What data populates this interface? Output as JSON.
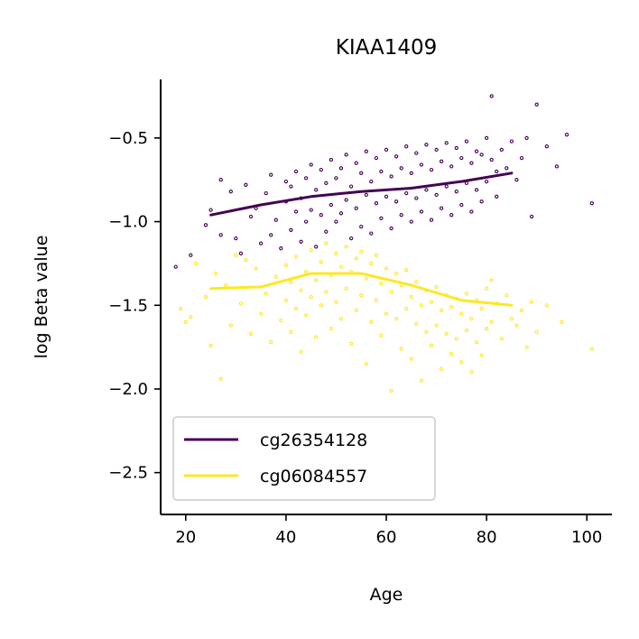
{
  "chart_data": {
    "type": "scatter",
    "title": "KIAA1409",
    "xlabel": "Age",
    "ylabel": "log Beta value",
    "xlim": [
      15,
      105
    ],
    "ylim": [
      -2.75,
      -0.15
    ],
    "xticks": [
      20,
      40,
      60,
      80,
      100
    ],
    "xtick_labels": [
      "20",
      "40",
      "60",
      "80",
      "100"
    ],
    "yticks": [
      -0.5,
      -1.0,
      -1.5,
      -2.0,
      -2.5
    ],
    "ytick_labels": [
      "−0.5",
      "−1.0",
      "−1.5",
      "−2.0",
      "−2.5"
    ],
    "grid": false,
    "legend_position": "lower-left",
    "series": [
      {
        "name": "cg26354128",
        "color": "#440154",
        "trend": {
          "x": [
            25,
            35,
            45,
            55,
            65,
            75,
            85
          ],
          "y": [
            -0.96,
            -0.9,
            -0.85,
            -0.82,
            -0.8,
            -0.76,
            -0.71
          ]
        },
        "points": {
          "x": [
            18,
            21,
            24,
            25,
            27,
            27,
            29,
            30,
            31,
            32,
            33,
            34,
            35,
            36,
            37,
            37,
            38,
            39,
            40,
            40,
            41,
            41,
            42,
            42,
            43,
            43,
            44,
            44,
            45,
            45,
            46,
            46,
            47,
            47,
            48,
            48,
            49,
            49,
            50,
            50,
            51,
            51,
            52,
            52,
            53,
            53,
            54,
            54,
            55,
            55,
            56,
            56,
            57,
            57,
            58,
            58,
            59,
            59,
            60,
            60,
            61,
            61,
            62,
            62,
            63,
            63,
            64,
            64,
            65,
            65,
            66,
            66,
            67,
            67,
            68,
            68,
            69,
            69,
            70,
            70,
            71,
            71,
            72,
            72,
            73,
            73,
            74,
            74,
            75,
            75,
            76,
            76,
            77,
            77,
            78,
            78,
            79,
            79,
            80,
            80,
            81,
            81,
            82,
            82,
            83,
            84,
            85,
            86,
            87,
            88,
            89,
            90,
            92,
            94,
            96,
            101
          ],
          "y": [
            -1.27,
            -1.2,
            -1.02,
            -0.93,
            -0.75,
            -1.08,
            -0.82,
            -1.1,
            -1.19,
            -0.78,
            -0.97,
            -0.92,
            -1.13,
            -0.83,
            -0.72,
            -1.08,
            -0.99,
            -1.16,
            -0.88,
            -0.76,
            -1.05,
            -0.79,
            -0.94,
            -0.7,
            -0.86,
            -1.12,
            -0.74,
            -1.0,
            -0.66,
            -0.93,
            -0.81,
            -1.15,
            -0.69,
            -0.96,
            -0.77,
            -1.06,
            -0.63,
            -0.9,
            -0.74,
            -1.0,
            -0.68,
            -0.95,
            -0.6,
            -0.87,
            -0.79,
            -1.1,
            -0.65,
            -0.92,
            -0.71,
            -1.03,
            -0.58,
            -0.84,
            -0.76,
            -1.07,
            -0.62,
            -0.89,
            -0.7,
            -0.98,
            -0.57,
            -0.85,
            -0.73,
            -1.04,
            -0.61,
            -0.88,
            -0.68,
            -0.96,
            -0.55,
            -0.83,
            -0.71,
            -1.0,
            -0.59,
            -0.86,
            -0.66,
            -0.94,
            -0.54,
            -0.81,
            -0.69,
            -0.99,
            -0.57,
            -0.84,
            -0.64,
            -0.92,
            -0.53,
            -0.79,
            -0.67,
            -0.96,
            -0.56,
            -0.82,
            -0.62,
            -0.9,
            -0.52,
            -0.77,
            -0.65,
            -0.94,
            -0.58,
            -0.81,
            -0.6,
            -0.88,
            -0.5,
            -0.76,
            -0.25,
            -0.63,
            -0.7,
            -0.85,
            -0.57,
            -0.68,
            -0.52,
            -0.75,
            -0.62,
            -0.5,
            -0.97,
            -0.3,
            -0.55,
            -0.67,
            -0.48,
            -0.89
          ]
        }
      },
      {
        "name": "cg06084557",
        "color": "#fde725",
        "trend": {
          "x": [
            25,
            35,
            45,
            55,
            65,
            75,
            85
          ],
          "y": [
            -1.4,
            -1.39,
            -1.31,
            -1.31,
            -1.38,
            -1.47,
            -1.5
          ]
        },
        "points": {
          "x": [
            19,
            20,
            21,
            22,
            24,
            25,
            26,
            27,
            28,
            29,
            30,
            31,
            32,
            33,
            34,
            35,
            36,
            37,
            38,
            39,
            40,
            40,
            41,
            41,
            42,
            42,
            43,
            43,
            44,
            44,
            45,
            45,
            46,
            46,
            47,
            47,
            48,
            48,
            49,
            49,
            50,
            50,
            51,
            51,
            52,
            52,
            53,
            53,
            54,
            54,
            55,
            55,
            56,
            56,
            57,
            57,
            58,
            58,
            59,
            59,
            60,
            60,
            61,
            61,
            62,
            62,
            63,
            63,
            64,
            64,
            65,
            65,
            66,
            66,
            67,
            67,
            68,
            68,
            69,
            69,
            70,
            70,
            71,
            71,
            72,
            72,
            73,
            73,
            74,
            74,
            75,
            75,
            76,
            76,
            77,
            77,
            78,
            78,
            79,
            79,
            80,
            80,
            81,
            81,
            82,
            83,
            84,
            85,
            86,
            87,
            88,
            89,
            90,
            92,
            95,
            101
          ],
          "y": [
            -1.52,
            -1.6,
            -1.57,
            -1.25,
            -1.45,
            -1.74,
            -1.31,
            -1.94,
            -1.38,
            -1.62,
            -1.2,
            -1.49,
            -1.23,
            -1.67,
            -1.28,
            -1.55,
            -1.43,
            -1.72,
            -1.33,
            -1.59,
            -1.26,
            -1.47,
            -1.36,
            -1.66,
            -1.21,
            -1.52,
            -1.41,
            -1.78,
            -1.3,
            -1.56,
            -1.17,
            -1.45,
            -1.35,
            -1.69,
            -1.24,
            -1.5,
            -1.13,
            -1.42,
            -1.32,
            -1.64,
            -1.19,
            -1.48,
            -1.27,
            -1.58,
            -1.15,
            -1.4,
            -1.3,
            -1.73,
            -1.22,
            -1.53,
            -1.18,
            -1.44,
            -1.34,
            -1.85,
            -1.25,
            -1.6,
            -1.2,
            -1.47,
            -1.37,
            -1.68,
            -1.28,
            -1.55,
            -1.42,
            -2.01,
            -1.31,
            -1.58,
            -1.38,
            -1.76,
            -1.29,
            -1.52,
            -1.45,
            -1.82,
            -1.36,
            -1.61,
            -1.5,
            -1.95,
            -1.41,
            -1.66,
            -1.48,
            -1.74,
            -1.39,
            -1.62,
            -1.53,
            -1.88,
            -1.44,
            -1.67,
            -1.51,
            -1.79,
            -1.46,
            -1.7,
            -1.55,
            -1.84,
            -1.43,
            -1.65,
            -1.58,
            -1.9,
            -1.47,
            -1.72,
            -1.52,
            -1.8,
            -1.4,
            -1.64,
            -1.35,
            -1.6,
            -1.49,
            -1.7,
            -1.44,
            -1.58,
            -1.62,
            -1.53,
            -1.75,
            -1.48,
            -1.66,
            -1.5,
            -1.6,
            -1.76
          ]
        }
      }
    ]
  }
}
